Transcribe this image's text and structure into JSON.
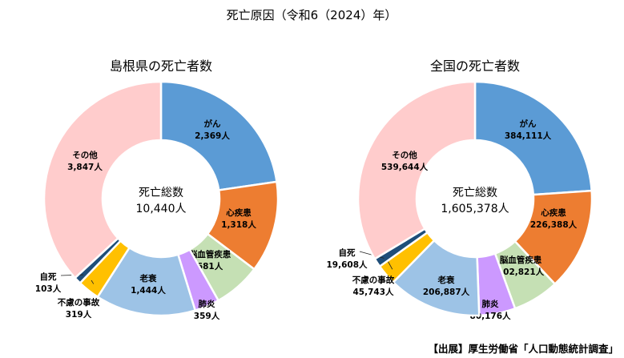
{
  "title": "死亡原因（令和6（2024）年）",
  "source": "【出展】厚生労働省「人口動態統計調査」",
  "center_label": "死亡総数",
  "chart_data": [
    {
      "type": "pie",
      "title": "島根県の死亡者数",
      "total_label": "10,440人",
      "categories": [
        "がん",
        "心疾患",
        "脳血管疾患",
        "肺炎",
        "老衰",
        "不慮の事故",
        "自死",
        "その他"
      ],
      "values": [
        2369,
        1318,
        681,
        359,
        1444,
        319,
        103,
        3847
      ],
      "value_labels": [
        "2,369人",
        "1,318人",
        "681人",
        "359人",
        "1,444人",
        "319人",
        "103人",
        "3,847人"
      ]
    },
    {
      "type": "pie",
      "title": "全国の死亡者数",
      "total_label": "1,605,378人",
      "categories": [
        "がん",
        "心疾患",
        "脳血管疾患",
        "肺炎",
        "老衰",
        "不慮の事故",
        "自死",
        "その他"
      ],
      "values": [
        384111,
        226388,
        102821,
        80176,
        206887,
        45743,
        19608,
        539644
      ],
      "value_labels": [
        "384,111人",
        "226,388人",
        "102,821人",
        "80,176人",
        "206,887人",
        "45,743人",
        "19,608人",
        "539,644人"
      ]
    }
  ],
  "colors": [
    "#5B9BD5",
    "#ED7D31",
    "#C5E0B4",
    "#CC99FF",
    "#9DC3E6",
    "#FFC000",
    "#1F4E79",
    "#FFCCCC"
  ]
}
